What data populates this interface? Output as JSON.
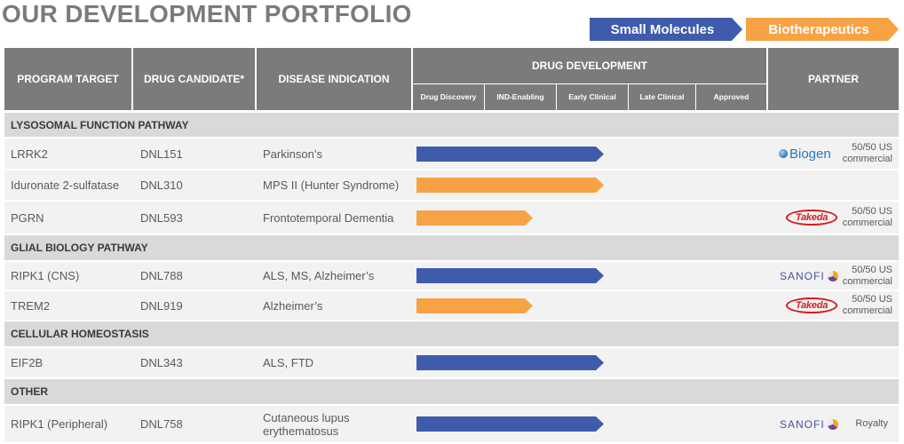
{
  "title": "OUR DEVELOPMENT PORTFOLIO",
  "legend": {
    "small_molecules": "Small Molecules",
    "biotherapeutics": "Biotherapeutics",
    "small_color": "#3f5bab",
    "bio_color": "#f7a245"
  },
  "headers": {
    "program_target": "PROGRAM TARGET",
    "drug_candidate": "DRUG CANDIDATE*",
    "disease_indication": "DISEASE INDICATION",
    "drug_development": "DRUG DEVELOPMENT",
    "partner": "PARTNER",
    "stages": [
      "Drug Discovery",
      "IND-Enabling",
      "Early Clinical",
      "Late Clinical",
      "Approved"
    ]
  },
  "sections": {
    "lysosomal": "LYSOSOMAL FUNCTION PATHWAY",
    "glial": "GLIAL BIOLOGY PATHWAY",
    "cellular": "CELLULAR HOMEOSTASIS",
    "other": "OTHER"
  },
  "rows": [
    {
      "target": "LRRK2",
      "candidate": "DNL151",
      "indication": "Parkinson’s",
      "modality": "small",
      "progress": 0.53,
      "partner_logo": "biogen-logo",
      "partner_name": "Biogen",
      "partner_terms": "50/50 US commercial"
    },
    {
      "target": "Iduronate 2-sulfatase",
      "candidate": "DNL310",
      "indication": "MPS II (Hunter Syndrome)",
      "modality": "bio",
      "progress": 0.53,
      "partner_logo": "",
      "partner_name": "",
      "partner_terms": ""
    },
    {
      "target": "PGRN",
      "candidate": "DNL593",
      "indication": "Frontotemporal Dementia",
      "modality": "bio",
      "progress": 0.33,
      "partner_logo": "takeda-logo",
      "partner_name": "Takeda",
      "partner_terms": "50/50 US commercial"
    },
    {
      "target": "RIPK1 (CNS)",
      "candidate": "DNL788",
      "indication": "ALS, MS, Alzheimer’s",
      "modality": "small",
      "progress": 0.53,
      "partner_logo": "sanofi-logo",
      "partner_name": "SANOFI",
      "partner_terms": "50/50 US commercial"
    },
    {
      "target": "TREM2",
      "candidate": "DNL919",
      "indication": "Alzheimer’s",
      "modality": "bio",
      "progress": 0.33,
      "partner_logo": "takeda-logo",
      "partner_name": "Takeda",
      "partner_terms": "50/50 US commercial"
    },
    {
      "target": "EIF2B",
      "candidate": "DNL343",
      "indication": "ALS, FTD",
      "modality": "small",
      "progress": 0.53,
      "partner_logo": "",
      "partner_name": "",
      "partner_terms": ""
    },
    {
      "target": "RIPK1 (Peripheral)",
      "candidate": "DNL758",
      "indication": "Cutaneous lupus erythematosus",
      "modality": "small",
      "progress": 0.53,
      "partner_logo": "sanofi-logo",
      "partner_name": "SANOFI",
      "partner_terms": "Royalty"
    }
  ]
}
